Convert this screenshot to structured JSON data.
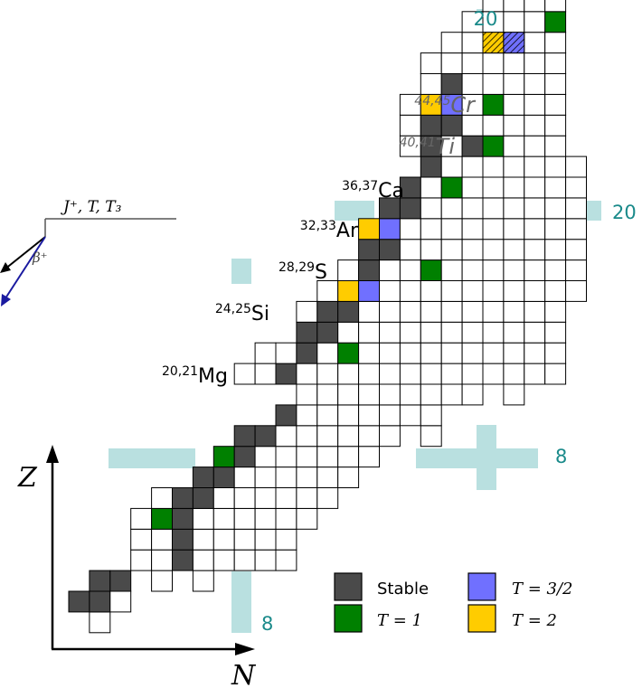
{
  "colors": {
    "stable": "#4a4a4a",
    "t1": "#008000",
    "t32": "#7070ff",
    "t2": "#ffcc00",
    "magic_band": "#b9e0e0",
    "magic_text": "#1a8a8a",
    "cell_border": "#000000",
    "decay_arrow": "#1a1aa0"
  },
  "magic_labels": {
    "top20": "20",
    "right20": "20",
    "right8": "8",
    "bottom8": "8"
  },
  "axes": {
    "z_label": "Z",
    "n_label": "N"
  },
  "decay_scheme": {
    "level_label": "J⁺, T, T₃",
    "beta_label": "β⁺"
  },
  "isotopes": [
    {
      "mass": "20,21",
      "symbol": "Mg",
      "style": "normal"
    },
    {
      "mass": "24,25",
      "symbol": "Si",
      "style": "normal"
    },
    {
      "mass": "28,29",
      "symbol": "S",
      "style": "normal"
    },
    {
      "mass": "32,33",
      "symbol": "Ar",
      "style": "normal"
    },
    {
      "mass": "36,37",
      "symbol": "Ca",
      "style": "normal"
    },
    {
      "mass": "40,41",
      "symbol": "Ti",
      "style": "italic"
    },
    {
      "mass": "44,45",
      "symbol": "Cr",
      "style": "italic"
    }
  ],
  "legend": {
    "stable": "Stable",
    "t32": "T = 3/2",
    "t1": "T = 1",
    "t2": "T = 2"
  }
}
